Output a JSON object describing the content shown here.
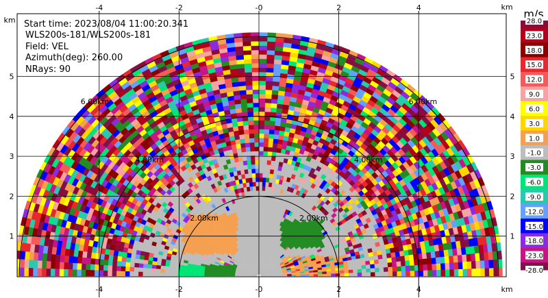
{
  "info": {
    "start_time": "Start time: 2023/08/04 11:00:20.341",
    "instrument": "WLS200s-181/WLS200s-181",
    "field": "Field: VEL",
    "azimuth": "Azimuth(deg): 260.00",
    "nrays": "NRays: 90"
  },
  "chart_data": {
    "type": "heatmap",
    "title": "",
    "xlabel": "km",
    "ylabel": "km",
    "xlim": [
      -6.1,
      6.1
    ],
    "ylim": [
      0,
      6.0
    ],
    "x_ticks": [
      "-4",
      "-2",
      "-0",
      "2",
      "4"
    ],
    "x_tick_values": [
      -4,
      -2,
      0,
      2,
      4
    ],
    "y_ticks": [
      "1",
      "2",
      "3",
      "4",
      "5"
    ],
    "y_tick_values": [
      1,
      2,
      3,
      4,
      5
    ],
    "grid": true,
    "scan": "RHI-style half-disc, elevation 0-180 deg, 90 rays",
    "max_range_km": 6.0,
    "range_rings_km": [
      2.0,
      4.0,
      6.0
    ],
    "range_ring_labels": [
      "2.00km",
      "4.00km",
      "6.00km"
    ],
    "colorbar": {
      "unit": "m/s",
      "ticks": [
        "28.0",
        "23.0",
        "18.0",
        "15.0",
        "12.0",
        "9.0",
        "6.0",
        "3.0",
        "1.0",
        "-1.0",
        "-3.0",
        "-6.0",
        "-9.0",
        "-12.0",
        "-15.0",
        "-18.0",
        "-23.0",
        "-28.0"
      ],
      "colors": [
        "#8b0a3a",
        "#b3001b",
        "#8b0000",
        "#e8282c",
        "#f45a5a",
        "#f7a3a3",
        "#ffff00",
        "#ffd700",
        "#f5a050",
        "#bdbdbd",
        "#228b22",
        "#00e676",
        "#28c9ac",
        "#64a0ff",
        "#0000ff",
        "#8a2be2",
        "#c71585",
        "#80124a"
      ]
    }
  }
}
